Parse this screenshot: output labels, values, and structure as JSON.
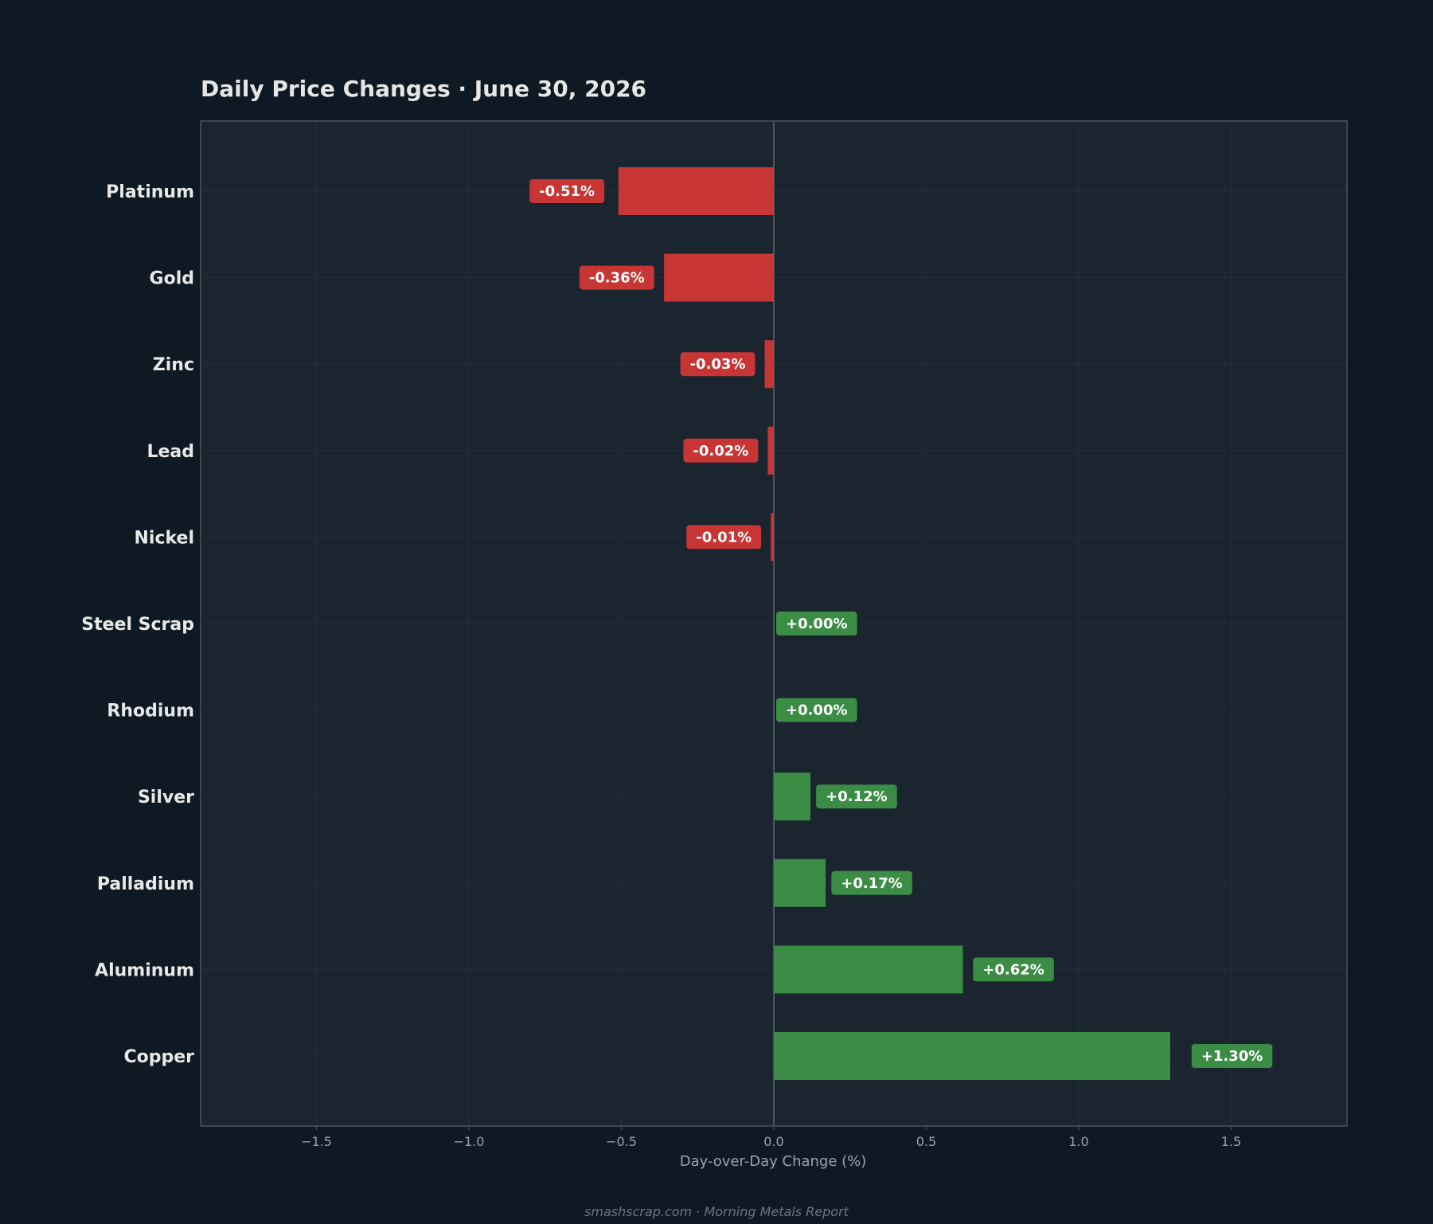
{
  "chart_data": {
    "type": "bar",
    "orientation": "horizontal",
    "title": "Daily Price Changes  ·  June 30, 2026",
    "xlabel": "Day-over-Day Change (%)",
    "ylabel": "",
    "categories": [
      "Platinum",
      "Gold",
      "Zinc",
      "Lead",
      "Nickel",
      "Steel Scrap",
      "Rhodium",
      "Silver",
      "Palladium",
      "Aluminum",
      "Copper"
    ],
    "values": [
      -0.51,
      -0.36,
      -0.03,
      -0.02,
      -0.01,
      0.0,
      0.0,
      0.12,
      0.17,
      0.62,
      1.3
    ],
    "data_labels": [
      "-0.51%",
      "-0.36%",
      "-0.03%",
      "-0.02%",
      "-0.01%",
      "+0.00%",
      "+0.00%",
      "+0.12%",
      "+0.17%",
      "+0.62%",
      "+1.30%"
    ],
    "xlim": [
      -1.88,
      1.88
    ],
    "xticks": [
      -1.5,
      -1.0,
      -0.5,
      0.0,
      0.5,
      1.0,
      1.5
    ],
    "xtick_labels": [
      "−1.5",
      "−1.0",
      "−0.5",
      "0.0",
      "0.5",
      "1.0",
      "1.5"
    ],
    "grid": true,
    "legend": "none",
    "colors": {
      "negative": "#c73535",
      "positive": "#3b8c45",
      "page_background": "#0f1923",
      "plot_background": "#1b2530",
      "plot_border": "#4a5560",
      "zero_line": "#5d6873",
      "grid": "#232e38"
    }
  },
  "footer": {
    "text": "smashscrap.com  ·  Morning Metals Report"
  }
}
